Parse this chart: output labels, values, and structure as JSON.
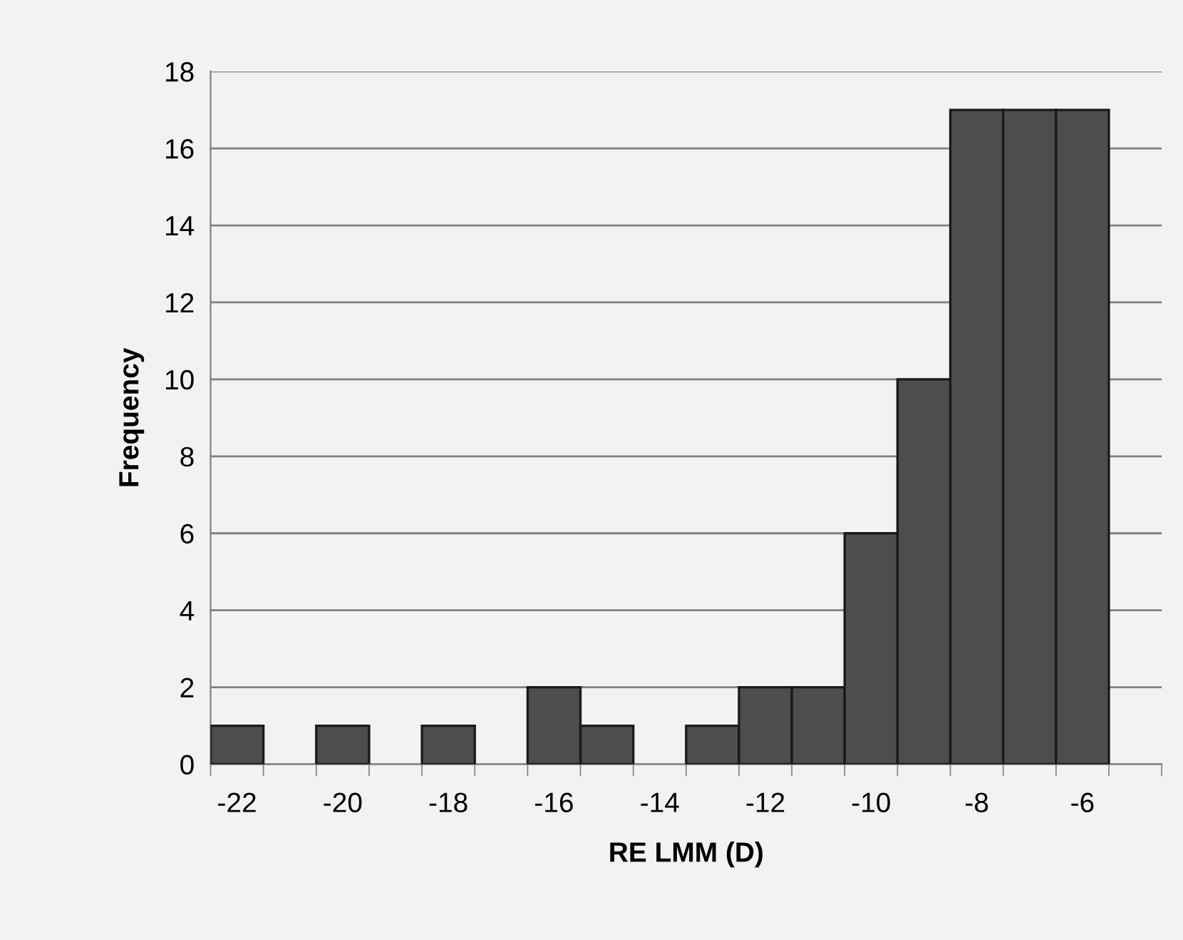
{
  "chart_data": {
    "type": "bar",
    "xlabel": "RE LMM (D)",
    "ylabel": "Frequency",
    "categories": [
      "-22",
      null,
      "-20",
      null,
      "-18",
      null,
      "-16",
      null,
      "-14",
      null,
      "-12",
      null,
      "-10",
      null,
      "-8",
      null,
      "-6",
      null
    ],
    "values": [
      1,
      0,
      1,
      0,
      1,
      0,
      2,
      1,
      0,
      1,
      2,
      2,
      6,
      10,
      17,
      17,
      17,
      0
    ],
    "color": "#4d4d4d",
    "ylim": [
      0,
      18
    ],
    "yticks": [
      0,
      2,
      4,
      6,
      8,
      10,
      12,
      14,
      16,
      18
    ],
    "grid": "y",
    "legend": false
  }
}
